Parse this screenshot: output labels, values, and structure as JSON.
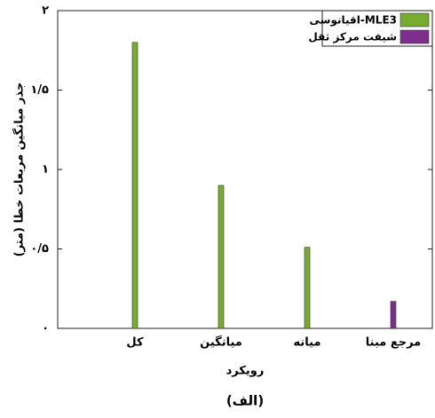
{
  "chart_data": {
    "type": "bar",
    "categories": [
      "کل",
      "میانگین",
      "میانه",
      "مرجع مبنا"
    ],
    "series": [
      {
        "name": "اقیانوسی-MLE3",
        "color": "#77ac30",
        "values": [
          1.8,
          0.9,
          0.51,
          null
        ]
      },
      {
        "name": "شیفت مرکز ثقل",
        "color": "#7e2f8e",
        "values": [
          null,
          null,
          null,
          0.17
        ]
      }
    ],
    "ylim": [
      0,
      2
    ],
    "yticks": [
      {
        "value": 0,
        "label": "۰"
      },
      {
        "value": 0.5,
        "label": "۰/۵"
      },
      {
        "value": 1,
        "label": "۱"
      },
      {
        "value": 1.5,
        "label": "۱/۵"
      },
      {
        "value": 2,
        "label": "۲"
      }
    ],
    "xlabel": "رویکرد",
    "ylabel": "جذر میانگین مربعات خطا (متر)",
    "caption": "(الف)",
    "legend": "upper right"
  }
}
